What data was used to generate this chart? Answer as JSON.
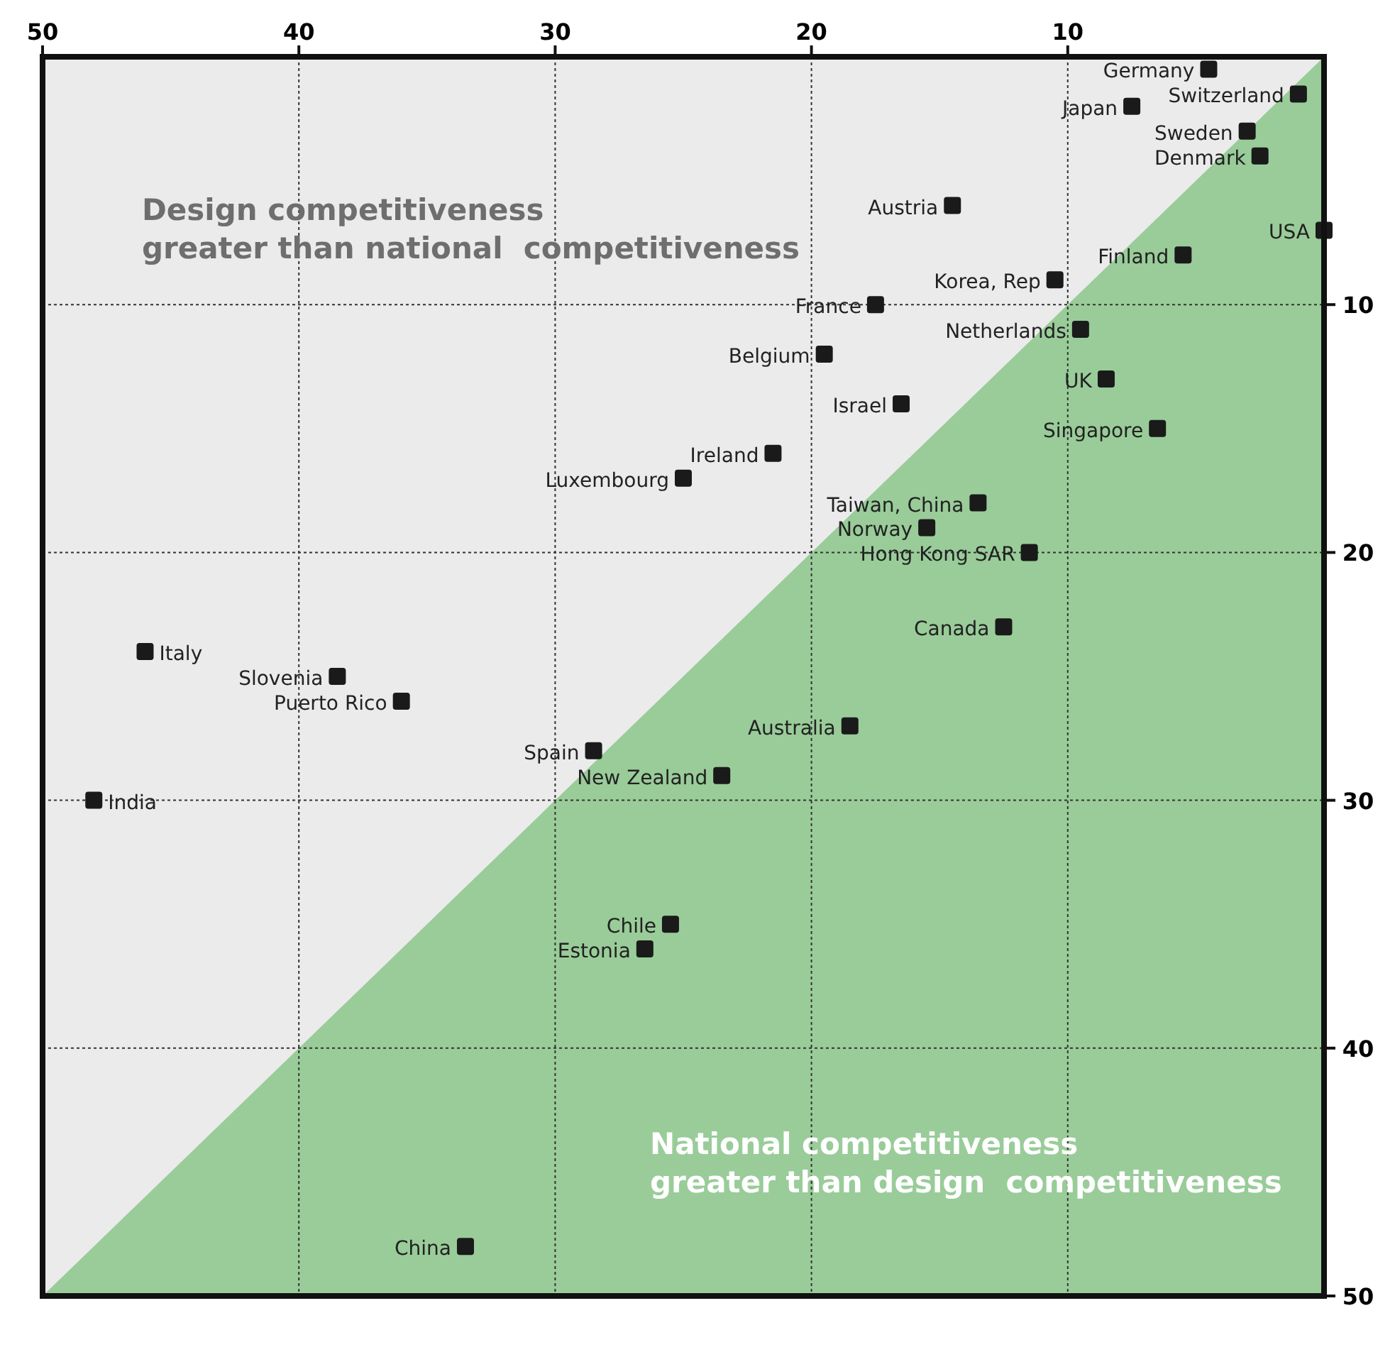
{
  "chart_data": {
    "type": "scatter",
    "xlim": [
      50,
      0
    ],
    "ylim": [
      50,
      0
    ],
    "xticks": [
      50,
      40,
      30,
      20,
      10
    ],
    "yticks": [
      10,
      20,
      30,
      40,
      50
    ],
    "grid": true,
    "series": [
      {
        "type": "area",
        "color": "#99cc99",
        "x": [
          0,
          50
        ],
        "values": [
          0,
          50
        ]
      },
      {
        "marker": "square",
        "color": "#1a1a1a",
        "x": [
          4.5,
          1,
          7.5,
          3,
          2.5,
          14.5,
          0,
          5.5,
          10.5,
          17.5,
          9.5,
          19.5,
          8.5,
          16.5,
          6.5,
          21.5,
          25,
          13.5,
          15.5,
          11.5,
          12.5,
          46,
          38.5,
          36,
          18.5,
          28.5,
          23.5,
          48,
          25.5,
          26.5,
          33.5
        ],
        "values": [
          0.5,
          1.5,
          2,
          3,
          4,
          6,
          7,
          8,
          9,
          10,
          11,
          12,
          13,
          14,
          15,
          16,
          17,
          18,
          19,
          20,
          23,
          24,
          25,
          26,
          27,
          28,
          29,
          30,
          35,
          36,
          48
        ]
      }
    ],
    "annotations": [
      "Design competitiveness\ngreater than national  competitiveness",
      "National competitiveness\ngreater than design  competitiveness",
      {
        "text": "Germany",
        "x": 4.5,
        "y": 0.5
      },
      {
        "text": "Switzerland",
        "x": 1,
        "y": 1.5
      },
      {
        "text": "Japan",
        "x": 7.5,
        "y": 2
      },
      {
        "text": "Sweden",
        "x": 3,
        "y": 3
      },
      {
        "text": "Denmark",
        "x": 2.5,
        "y": 4
      },
      {
        "text": "Austria",
        "x": 14.5,
        "y": 6
      },
      {
        "text": "USA",
        "x": 0,
        "y": 7
      },
      {
        "text": "Finland",
        "x": 5.5,
        "y": 8
      },
      {
        "text": "Korea, Rep",
        "x": 10.5,
        "y": 9
      },
      {
        "text": "France",
        "x": 17.5,
        "y": 10
      },
      {
        "text": "Netherlands",
        "x": 9.5,
        "y": 11
      },
      {
        "text": "Belgium",
        "x": 19.5,
        "y": 12
      },
      {
        "text": "UK",
        "x": 8.5,
        "y": 13
      },
      {
        "text": "Israel",
        "x": 16.5,
        "y": 14
      },
      {
        "text": "Singapore",
        "x": 6.5,
        "y": 15
      },
      {
        "text": "Ireland",
        "x": 21.5,
        "y": 16
      },
      {
        "text": "Luxembourg",
        "x": 25,
        "y": 17
      },
      {
        "text": "Taiwan, China",
        "x": 13.5,
        "y": 18
      },
      {
        "text": "Norway",
        "x": 15.5,
        "y": 19
      },
      {
        "text": "Hong Kong SAR",
        "x": 11.5,
        "y": 20
      },
      {
        "text": "Canada",
        "x": 12.5,
        "y": 23
      },
      {
        "text": "Italy",
        "x": 46,
        "y": 24
      },
      {
        "text": "Slovenia",
        "x": 38.5,
        "y": 25
      },
      {
        "text": "Puerto Rico",
        "x": 36,
        "y": 26
      },
      {
        "text": "Australia",
        "x": 18.5,
        "y": 27
      },
      {
        "text": "Spain",
        "x": 28.5,
        "y": 28
      },
      {
        "text": "New Zealand",
        "x": 23.5,
        "y": 29
      },
      {
        "text": "India",
        "x": 48,
        "y": 30
      },
      {
        "text": "Chile",
        "x": 25.5,
        "y": 35
      },
      {
        "text": "Estonia",
        "x": 26.5,
        "y": 36
      },
      {
        "text": "China",
        "x": 33.5,
        "y": 48
      }
    ]
  }
}
